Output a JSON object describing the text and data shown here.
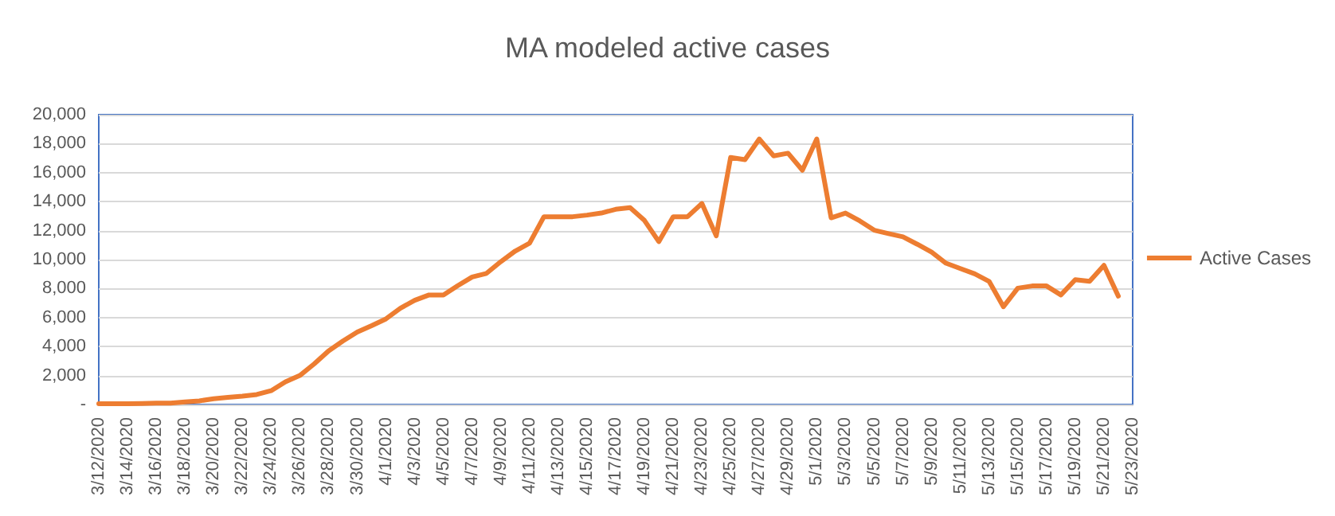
{
  "chart_data": {
    "type": "line",
    "title": "MA modeled active cases",
    "categories": [
      "3/12/2020",
      null,
      "3/14/2020",
      null,
      "3/16/2020",
      null,
      "3/18/2020",
      null,
      "3/20/2020",
      null,
      "3/22/2020",
      null,
      "3/24/2020",
      null,
      "3/26/2020",
      null,
      "3/28/2020",
      null,
      "3/30/2020",
      null,
      "4/1/2020",
      null,
      "4/3/2020",
      null,
      "4/5/2020",
      null,
      "4/7/2020",
      null,
      "4/9/2020",
      null,
      "4/11/2020",
      null,
      "4/13/2020",
      null,
      "4/15/2020",
      null,
      "4/17/2020",
      null,
      "4/19/2020",
      null,
      "4/21/2020",
      null,
      "4/23/2020",
      null,
      "4/25/2020",
      null,
      "4/27/2020",
      null,
      "4/29/2020",
      null,
      "5/1/2020",
      null,
      "5/3/2020",
      null,
      "5/5/2020",
      null,
      "5/7/2020",
      null,
      "5/9/2020",
      null,
      "5/11/2020",
      null,
      "5/13/2020",
      null,
      "5/15/2020",
      null,
      "5/17/2020",
      null,
      "5/19/2020",
      null,
      "5/21/2020",
      null,
      "5/23/2020"
    ],
    "series": [
      {
        "name": "Active Cases",
        "color": "#ed7d31",
        "values": [
          50,
          50,
          60,
          70,
          90,
          100,
          180,
          250,
          400,
          500,
          580,
          690,
          950,
          1570,
          2000,
          2800,
          3700,
          4380,
          5000,
          5440,
          5910,
          6640,
          7190,
          7560,
          7560,
          8200,
          8800,
          9050,
          9860,
          10590,
          11130,
          12960,
          12960,
          12960,
          13070,
          13210,
          13470,
          13580,
          12700,
          11240,
          12960,
          12960,
          13870,
          11640,
          17050,
          16900,
          18320,
          17160,
          17340,
          16170,
          18320,
          12880,
          13210,
          12670,
          12030,
          11790,
          11570,
          11060,
          10510,
          9750,
          9380,
          9020,
          8500,
          6750,
          8030,
          8180,
          8180,
          7560,
          8610,
          8500,
          9600,
          7480,
          null
        ]
      }
    ],
    "ylim": [
      0,
      20000
    ],
    "yticks": [
      {
        "value": 0,
        "label": "-"
      },
      {
        "value": 2000,
        "label": "2,000"
      },
      {
        "value": 4000,
        "label": "4,000"
      },
      {
        "value": 6000,
        "label": "6,000"
      },
      {
        "value": 8000,
        "label": "8,000"
      },
      {
        "value": 10000,
        "label": "10,000"
      },
      {
        "value": 12000,
        "label": "12,000"
      },
      {
        "value": 14000,
        "label": "14,000"
      },
      {
        "value": 16000,
        "label": "16,000"
      },
      {
        "value": 18000,
        "label": "18,000"
      },
      {
        "value": 20000,
        "label": "20,000"
      }
    ],
    "grid": "y",
    "legend": "right",
    "marker": "none",
    "line_style": "solid"
  }
}
